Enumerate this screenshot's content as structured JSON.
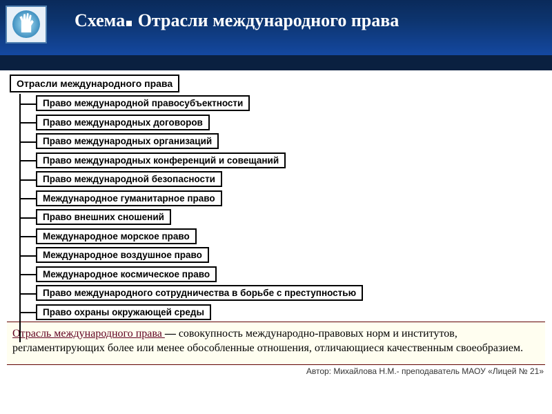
{
  "header": {
    "title_part1": "Схема",
    "title_part2": "Отрасли международного права"
  },
  "diagram": {
    "title": "Отрасли международного права",
    "branches": [
      "Право международной правосубъектности",
      "Право международных договоров",
      "Право международных организаций",
      "Право международных конференций и совещаний",
      "Право международной безопасности",
      "Международное гуманитарное право",
      "Право внешних сношений",
      "Международное морское право",
      "Международное воздушное право",
      "Международное космическое право",
      "Право международного сотрудничества в борьбе с преступностью",
      "Право охраны окружающей среды"
    ]
  },
  "definition": {
    "term": "Отрасль международного права ",
    "dash": "—",
    "body": " совокупность международно-правовых норм и институтов, регламентирующих более или менее обособленные отношения, отличающиеся качественным своеобразием."
  },
  "footer": {
    "author": "Автор: Михайлова Н.М.- преподаватель МАОУ «Лицей № 21»"
  },
  "colors": {
    "header_gradient_top": "#0a2a5a",
    "header_gradient_bottom": "#1448a0",
    "dark_band": "#0a2040",
    "definition_bg": "#fffef0",
    "underline_color": "#600020"
  }
}
